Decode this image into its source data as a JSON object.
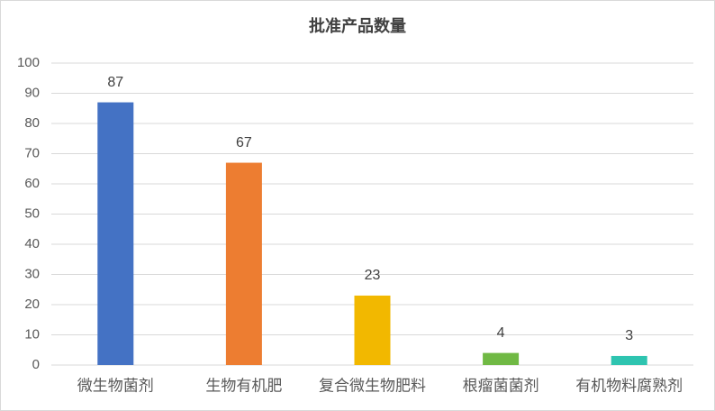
{
  "chart_data": {
    "type": "bar",
    "title": "批准产品数量",
    "categories": [
      "微生物菌剂",
      "生物有机肥",
      "复合微生物肥料",
      "根瘤菌菌剂",
      "有机物料腐熟剂"
    ],
    "values": [
      87,
      67,
      23,
      4,
      3
    ],
    "colors": [
      "#4472c4",
      "#ed7d31",
      "#f2b800",
      "#70b944",
      "#2ec4b0"
    ],
    "ylim": [
      0,
      100
    ],
    "yticks": [
      0,
      10,
      20,
      30,
      40,
      50,
      60,
      70,
      80,
      90,
      100
    ],
    "grid": true
  }
}
